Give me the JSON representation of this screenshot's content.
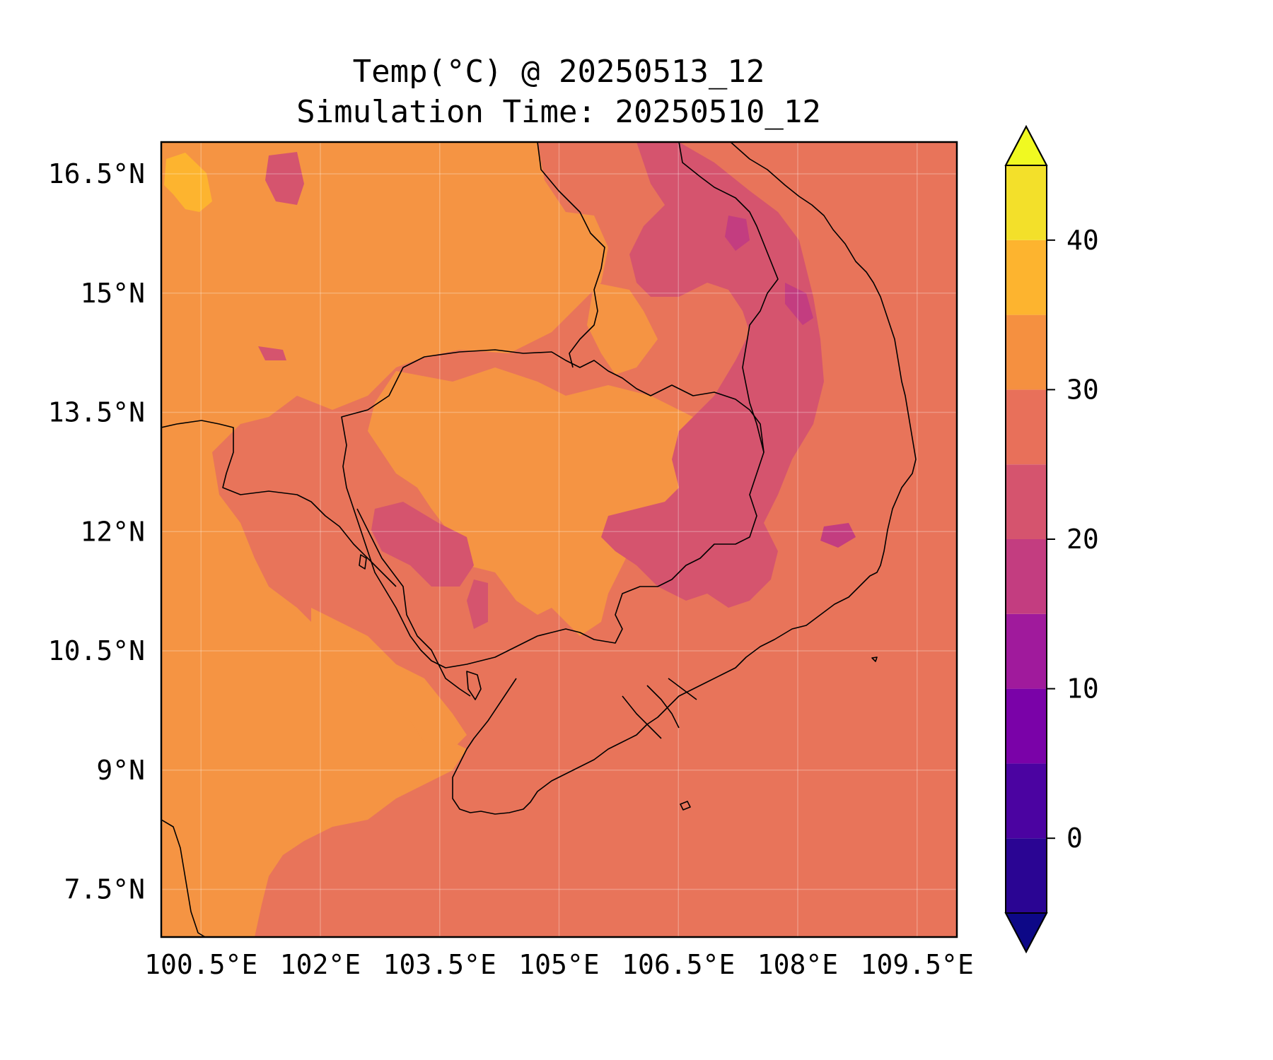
{
  "title": {
    "line1": "Temp(°C) @ 20250513_12",
    "line2": "Simulation Time: 20250510_12"
  },
  "map": {
    "lon_range": [
      100.0,
      110.0
    ],
    "lat_range": [
      6.9,
      16.9
    ],
    "x_ticks": [
      {
        "value": 100.5,
        "label": "100.5°E"
      },
      {
        "value": 102.0,
        "label": "102°E"
      },
      {
        "value": 103.5,
        "label": "103.5°E"
      },
      {
        "value": 105.0,
        "label": "105°E"
      },
      {
        "value": 106.5,
        "label": "106.5°E"
      },
      {
        "value": 108.0,
        "label": "108°E"
      },
      {
        "value": 109.5,
        "label": "109.5°E"
      }
    ],
    "y_ticks": [
      {
        "value": 16.5,
        "label": "16.5°N"
      },
      {
        "value": 15.0,
        "label": "15°N"
      },
      {
        "value": 13.5,
        "label": "13.5°N"
      },
      {
        "value": 12.0,
        "label": "12°N"
      },
      {
        "value": 10.5,
        "label": "10.5°N"
      },
      {
        "value": 9.0,
        "label": "9°N"
      },
      {
        "value": 7.5,
        "label": "7.5°N"
      }
    ],
    "gridlines": true,
    "colormap": "plasma"
  },
  "colorbar": {
    "levels": [
      -5,
      0,
      5,
      10,
      15,
      20,
      25,
      30,
      35,
      40,
      45
    ],
    "colors": [
      "#2a0593",
      "#4b03a1",
      "#7a02a8",
      "#a01a9c",
      "#c33d80",
      "#d5546e",
      "#e8705a",
      "#f59040",
      "#fdb42f",
      "#f3e02a"
    ],
    "under_color": "#0d0887",
    "over_color": "#f0f921",
    "tick_values": [
      0,
      10,
      20,
      30,
      40
    ],
    "tick_labels": [
      "0",
      "10",
      "20",
      "30",
      "40"
    ],
    "extend": "both"
  }
}
